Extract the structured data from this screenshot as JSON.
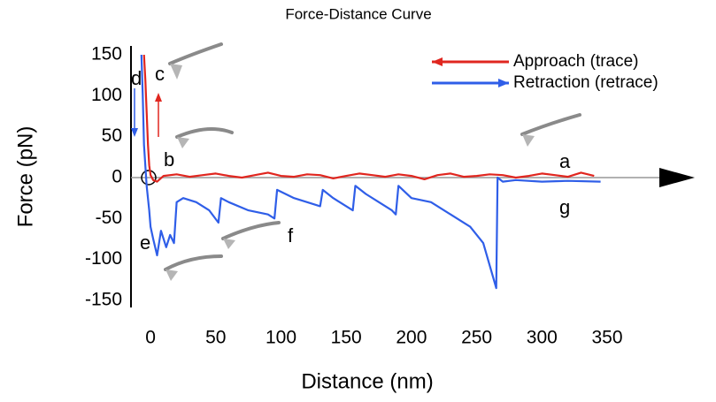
{
  "chart_data": {
    "type": "line",
    "title": "Force-Distance Curve",
    "x_label": "Distance (nm)",
    "y_label": "Force (pN)",
    "xlim": [
      -15,
      350
    ],
    "xticks": [
      0,
      50,
      100,
      150,
      200,
      250,
      300,
      350
    ],
    "ylim": [
      -150,
      150
    ],
    "yticks": [
      -150,
      -100,
      -50,
      0,
      50,
      100,
      150
    ],
    "grid": false,
    "legend": "upper right",
    "annotations": [
      "a",
      "b",
      "c",
      "d",
      "e",
      "f",
      "g"
    ],
    "series": [
      {
        "name": "Approach (trace)",
        "color": "#e0261f",
        "x": [
          -5,
          -4,
          -3,
          -2,
          -1,
          0,
          2,
          5,
          10,
          20,
          30,
          40,
          50,
          60,
          70,
          80,
          90,
          100,
          110,
          120,
          130,
          140,
          150,
          160,
          170,
          180,
          190,
          200,
          210,
          220,
          230,
          240,
          250,
          260,
          270,
          280,
          290,
          300,
          310,
          320,
          330,
          340
        ],
        "values": [
          150,
          120,
          80,
          40,
          15,
          3,
          -3,
          -5,
          2,
          4,
          1,
          3,
          5,
          2,
          0,
          3,
          6,
          2,
          1,
          4,
          3,
          -1,
          2,
          5,
          3,
          1,
          4,
          2,
          -2,
          3,
          5,
          1,
          2,
          4,
          3,
          0,
          2,
          5,
          3,
          1,
          6,
          2
        ]
      },
      {
        "name": "Retraction (retrace)",
        "color": "#2f5ee8",
        "x": [
          -7,
          -6,
          -5,
          -3,
          -1,
          0,
          2,
          5,
          8,
          12,
          15,
          18,
          20,
          25,
          35,
          45,
          52,
          54,
          60,
          75,
          90,
          95,
          97,
          110,
          120,
          130,
          132,
          140,
          150,
          155,
          157,
          165,
          175,
          185,
          188,
          190,
          200,
          215,
          230,
          245,
          255,
          265,
          266,
          270,
          280,
          300,
          320,
          345
        ],
        "values": [
          150,
          100,
          40,
          -10,
          -40,
          -60,
          -75,
          -95,
          -65,
          -85,
          -70,
          -80,
          -30,
          -25,
          -30,
          -40,
          -55,
          -25,
          -30,
          -40,
          -45,
          -50,
          -15,
          -25,
          -30,
          -35,
          -15,
          -25,
          -35,
          -40,
          -10,
          -20,
          -30,
          -40,
          -45,
          -10,
          -25,
          -30,
          -45,
          -60,
          -80,
          -135,
          0,
          -5,
          -3,
          -5,
          -4,
          -5
        ]
      }
    ]
  }
}
